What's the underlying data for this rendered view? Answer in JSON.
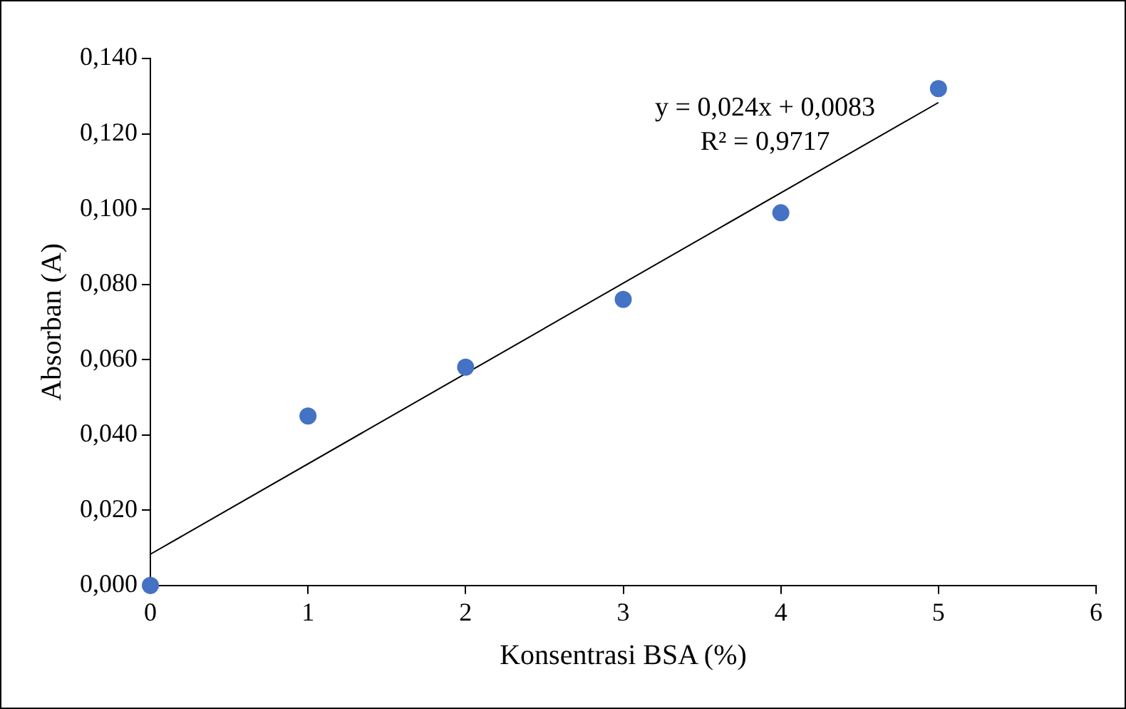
{
  "chart_data": {
    "type": "scatter",
    "xlabel": "Konsentrasi BSA (%)",
    "ylabel": "Absorban (A)",
    "x": [
      0,
      1,
      2,
      3,
      4,
      5
    ],
    "series": [
      {
        "type": "scatter",
        "color": "#4472c4",
        "marker": "circle",
        "values": [
          0.0,
          0.045,
          0.058,
          0.076,
          0.099,
          0.132
        ]
      },
      {
        "type": "line",
        "color": "#000000",
        "marker": "none",
        "line_style": "solid",
        "x": [
          0,
          5
        ],
        "values": [
          0.0083,
          0.1283
        ]
      }
    ],
    "xlim": [
      0,
      6
    ],
    "xticks": [
      0,
      1,
      2,
      3,
      4,
      5,
      6
    ],
    "ylim": [
      0,
      0.14
    ],
    "yticks": [
      {
        "value": 0,
        "label": "0,000"
      },
      {
        "value": 0.02,
        "label": "0,020"
      },
      {
        "value": 0.04,
        "label": "0,040"
      },
      {
        "value": 0.06,
        "label": "0,060"
      },
      {
        "value": 0.08,
        "label": "0,080"
      },
      {
        "value": 0.1,
        "label": "0,100"
      },
      {
        "value": 0.12,
        "label": "0,120"
      },
      {
        "value": 0.14,
        "label": "0,140"
      }
    ],
    "annotations": [
      "y = 0,024x + 0,0083",
      "R² = 0,9717"
    ],
    "grid": false,
    "legend": false
  }
}
